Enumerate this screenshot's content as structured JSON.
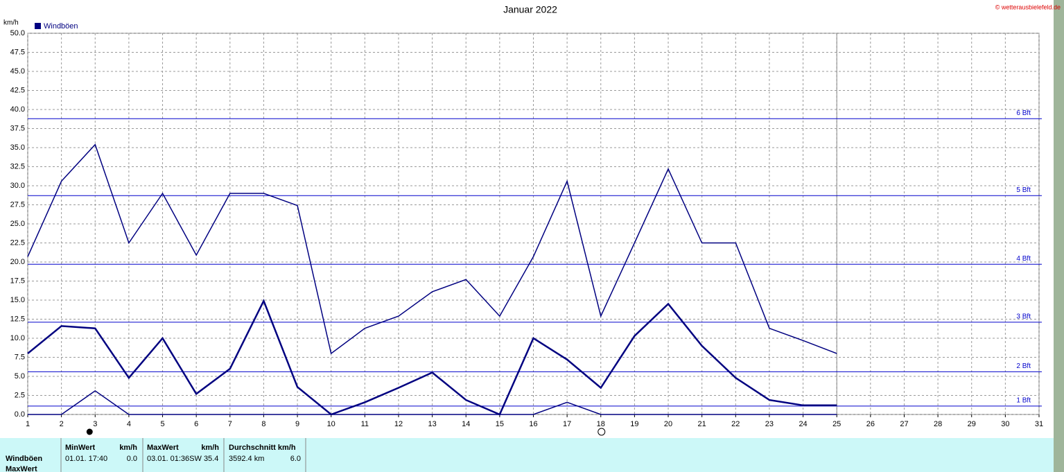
{
  "chart_data": {
    "type": "line",
    "title": "Januar 2022",
    "y_label": "km/h",
    "copyright": "© wetterausbielefeld.de",
    "legend": {
      "label": "Windböen",
      "color": "#000080"
    },
    "x": [
      1,
      2,
      3,
      4,
      5,
      6,
      7,
      8,
      9,
      10,
      11,
      12,
      13,
      14,
      15,
      16,
      17,
      18,
      19,
      20,
      21,
      22,
      23,
      24,
      25
    ],
    "series": [
      {
        "color": "#000080",
        "width": 1.5,
        "values": [
          20.7,
          30.6,
          35.4,
          22.5,
          29.0,
          20.9,
          29.0,
          29.0,
          27.4,
          8.0,
          11.3,
          12.9,
          16.1,
          17.7,
          12.9,
          20.7,
          30.6,
          12.9,
          22.5,
          32.2,
          22.5,
          22.5,
          11.3,
          9.7,
          8.0
        ]
      },
      {
        "color": "#000080",
        "width": 2.5,
        "values": [
          8.0,
          11.6,
          11.3,
          4.8,
          10.0,
          2.7,
          6.0,
          14.9,
          3.6,
          0,
          1.6,
          3.5,
          5.5,
          1.9,
          0,
          10.0,
          7.2,
          3.5,
          10.3,
          14.5,
          9.0,
          4.8,
          1.9,
          1.2,
          1.2
        ]
      },
      {
        "color": "#000080",
        "width": 1.5,
        "values": [
          0,
          0,
          3.1,
          0,
          0,
          0,
          0,
          0,
          0,
          0,
          0,
          0,
          0,
          0,
          0,
          0,
          1.6,
          0,
          0,
          0,
          0,
          0,
          0,
          0,
          0
        ]
      }
    ],
    "xlim": [
      1,
      31
    ],
    "xticks": [
      1,
      2,
      3,
      4,
      5,
      6,
      7,
      8,
      9,
      10,
      11,
      12,
      13,
      14,
      15,
      16,
      17,
      18,
      19,
      20,
      21,
      22,
      23,
      24,
      25,
      26,
      27,
      28,
      29,
      30,
      31
    ],
    "ylim": [
      0,
      50
    ],
    "yticks": [
      {
        "value": 0,
        "label": "0.0"
      },
      {
        "value": 2.5,
        "label": "2.5"
      },
      {
        "value": 5,
        "label": "5.0"
      },
      {
        "value": 7.5,
        "label": "7.5"
      },
      {
        "value": 10,
        "label": "10.0"
      },
      {
        "value": 12.5,
        "label": "12.5"
      },
      {
        "value": 15,
        "label": "15.0"
      },
      {
        "value": 17.5,
        "label": "17.5"
      },
      {
        "value": 20,
        "label": "20.0"
      },
      {
        "value": 22.5,
        "label": "22.5"
      },
      {
        "value": 25,
        "label": "25.0"
      },
      {
        "value": 27.5,
        "label": "27.5"
      },
      {
        "value": 30,
        "label": "30.0"
      },
      {
        "value": 32.5,
        "label": "32.5"
      },
      {
        "value": 35,
        "label": "35.0"
      },
      {
        "value": 37.5,
        "label": "37.5"
      },
      {
        "value": 40,
        "label": "40.0"
      },
      {
        "value": 42.5,
        "label": "42.5"
      },
      {
        "value": 45,
        "label": "45.0"
      },
      {
        "value": 47.5,
        "label": "47.5"
      },
      {
        "value": 50,
        "label": "50.0"
      }
    ],
    "grid": true,
    "current_day": 25,
    "beaufort": [
      {
        "label": "1 Bft",
        "value": 1.1
      },
      {
        "label": "2 Bft",
        "value": 5.6
      },
      {
        "label": "3 Bft",
        "value": 12.1
      },
      {
        "label": "4 Bft",
        "value": 19.7
      },
      {
        "label": "5 Bft",
        "value": 28.7
      },
      {
        "label": "6 Bft",
        "value": 38.8
      }
    ]
  },
  "table": {
    "headers": [
      [
        "MinWert",
        "km/h"
      ],
      [
        "MaxWert",
        "km/h"
      ],
      [
        "Durchschnitt km/h"
      ]
    ],
    "row_label": "Windböen",
    "row2_label": "MaxWert",
    "cells": [
      [
        "01.01.  17:40",
        "0.0"
      ],
      [
        "03.01.  01:36SW 35.4"
      ],
      [
        "3592.4 km",
        "6.0"
      ]
    ]
  }
}
